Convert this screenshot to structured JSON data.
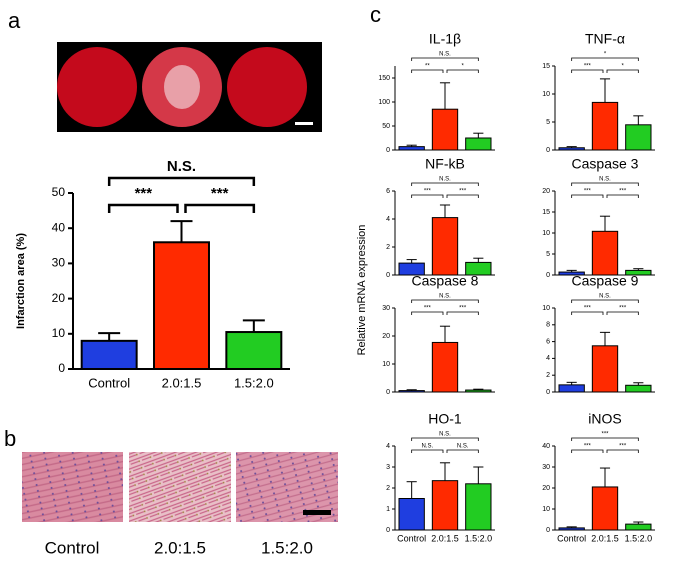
{
  "panel_labels": [
    "a",
    "b",
    "c"
  ],
  "histology": {
    "labels": [
      "Control",
      "2.0:1.5",
      "1.5:2.0"
    ]
  },
  "shared_ylabel": "Relative mRNA expression",
  "chart_data": [
    {
      "type": "bar",
      "ylabel": "Infarction area (%)",
      "categories": [
        "Control",
        "2.0:1.5",
        "1.5:2.0"
      ],
      "values": [
        8,
        36,
        10.5
      ],
      "errors": [
        2.2,
        6,
        3.3
      ],
      "colors": [
        "#1f3ee0",
        "#ff2a00",
        "#22cc22"
      ],
      "ylim": [
        0,
        50
      ],
      "yticks": [
        0,
        10,
        20,
        30,
        40,
        50
      ],
      "annotations": [
        "***",
        "***",
        "N.S."
      ]
    },
    {
      "type": "bar",
      "title": "IL-1β",
      "values": [
        7,
        85,
        25
      ],
      "errors": [
        3,
        55,
        10
      ],
      "colors": [
        "#1f3ee0",
        "#ff2a00",
        "#22cc22"
      ],
      "ylim": [
        0,
        175
      ],
      "yticks": [
        0,
        50,
        100,
        150
      ],
      "annotations": [
        "**",
        "*",
        "N.S."
      ]
    },
    {
      "type": "bar",
      "title": "TNF-α",
      "values": [
        0.4,
        8.5,
        4.5
      ],
      "errors": [
        0.2,
        4.2,
        1.6
      ],
      "colors": [
        "#1f3ee0",
        "#ff2a00",
        "#22cc22"
      ],
      "ylim": [
        0,
        15
      ],
      "yticks": [
        0,
        5,
        10,
        15
      ],
      "annotations": [
        "***",
        "*",
        "*"
      ]
    },
    {
      "type": "bar",
      "title": "NF-kB",
      "values": [
        0.85,
        4.1,
        0.9
      ],
      "errors": [
        0.25,
        0.9,
        0.3
      ],
      "colors": [
        "#1f3ee0",
        "#ff2a00",
        "#22cc22"
      ],
      "ylim": [
        0,
        6
      ],
      "yticks": [
        0,
        2,
        4,
        6
      ],
      "annotations": [
        "***",
        "***",
        "N.S."
      ]
    },
    {
      "type": "bar",
      "title": "Caspase 3",
      "values": [
        0.7,
        10.4,
        1.1
      ],
      "errors": [
        0.4,
        3.6,
        0.4
      ],
      "colors": [
        "#1f3ee0",
        "#ff2a00",
        "#22cc22"
      ],
      "ylim": [
        0,
        20
      ],
      "yticks": [
        0,
        5,
        10,
        15,
        20
      ],
      "annotations": [
        "***",
        "***",
        "N.S."
      ]
    },
    {
      "type": "bar",
      "title": "Caspase 8",
      "values": [
        0.5,
        17.7,
        0.7
      ],
      "errors": [
        0.3,
        5.8,
        0.3
      ],
      "colors": [
        "#1f3ee0",
        "#ff2a00",
        "#22cc22"
      ],
      "ylim": [
        0,
        30
      ],
      "yticks": [
        0,
        10,
        20,
        30
      ],
      "annotations": [
        "***",
        "***",
        "N.S."
      ]
    },
    {
      "type": "bar",
      "title": "Caspase 9",
      "values": [
        0.85,
        5.5,
        0.8
      ],
      "errors": [
        0.3,
        1.6,
        0.3
      ],
      "colors": [
        "#1f3ee0",
        "#ff2a00",
        "#22cc22"
      ],
      "ylim": [
        0,
        10
      ],
      "yticks": [
        0,
        2,
        4,
        6,
        8,
        10
      ],
      "annotations": [
        "***",
        "***",
        "N.S."
      ]
    },
    {
      "type": "bar",
      "title": "HO-1",
      "categories": [
        "Control",
        "2.0:1.5",
        "1.5:2.0"
      ],
      "values": [
        1.5,
        2.35,
        2.2
      ],
      "errors": [
        0.8,
        0.85,
        0.8
      ],
      "colors": [
        "#1f3ee0",
        "#ff2a00",
        "#22cc22"
      ],
      "ylim": [
        0,
        4
      ],
      "yticks": [
        0,
        1,
        2,
        3,
        4
      ],
      "annotations": [
        "N.S.",
        "N.S.",
        "N.S."
      ]
    },
    {
      "type": "bar",
      "title": "iNOS",
      "categories": [
        "Control",
        "2.0:1.5",
        "1.5:2.0"
      ],
      "values": [
        1,
        20.5,
        2.8
      ],
      "errors": [
        0.5,
        9,
        1
      ],
      "colors": [
        "#1f3ee0",
        "#ff2a00",
        "#22cc22"
      ],
      "ylim": [
        0,
        40
      ],
      "yticks": [
        0,
        10,
        20,
        30,
        40
      ],
      "annotations": [
        "***",
        "***",
        "***"
      ]
    }
  ]
}
